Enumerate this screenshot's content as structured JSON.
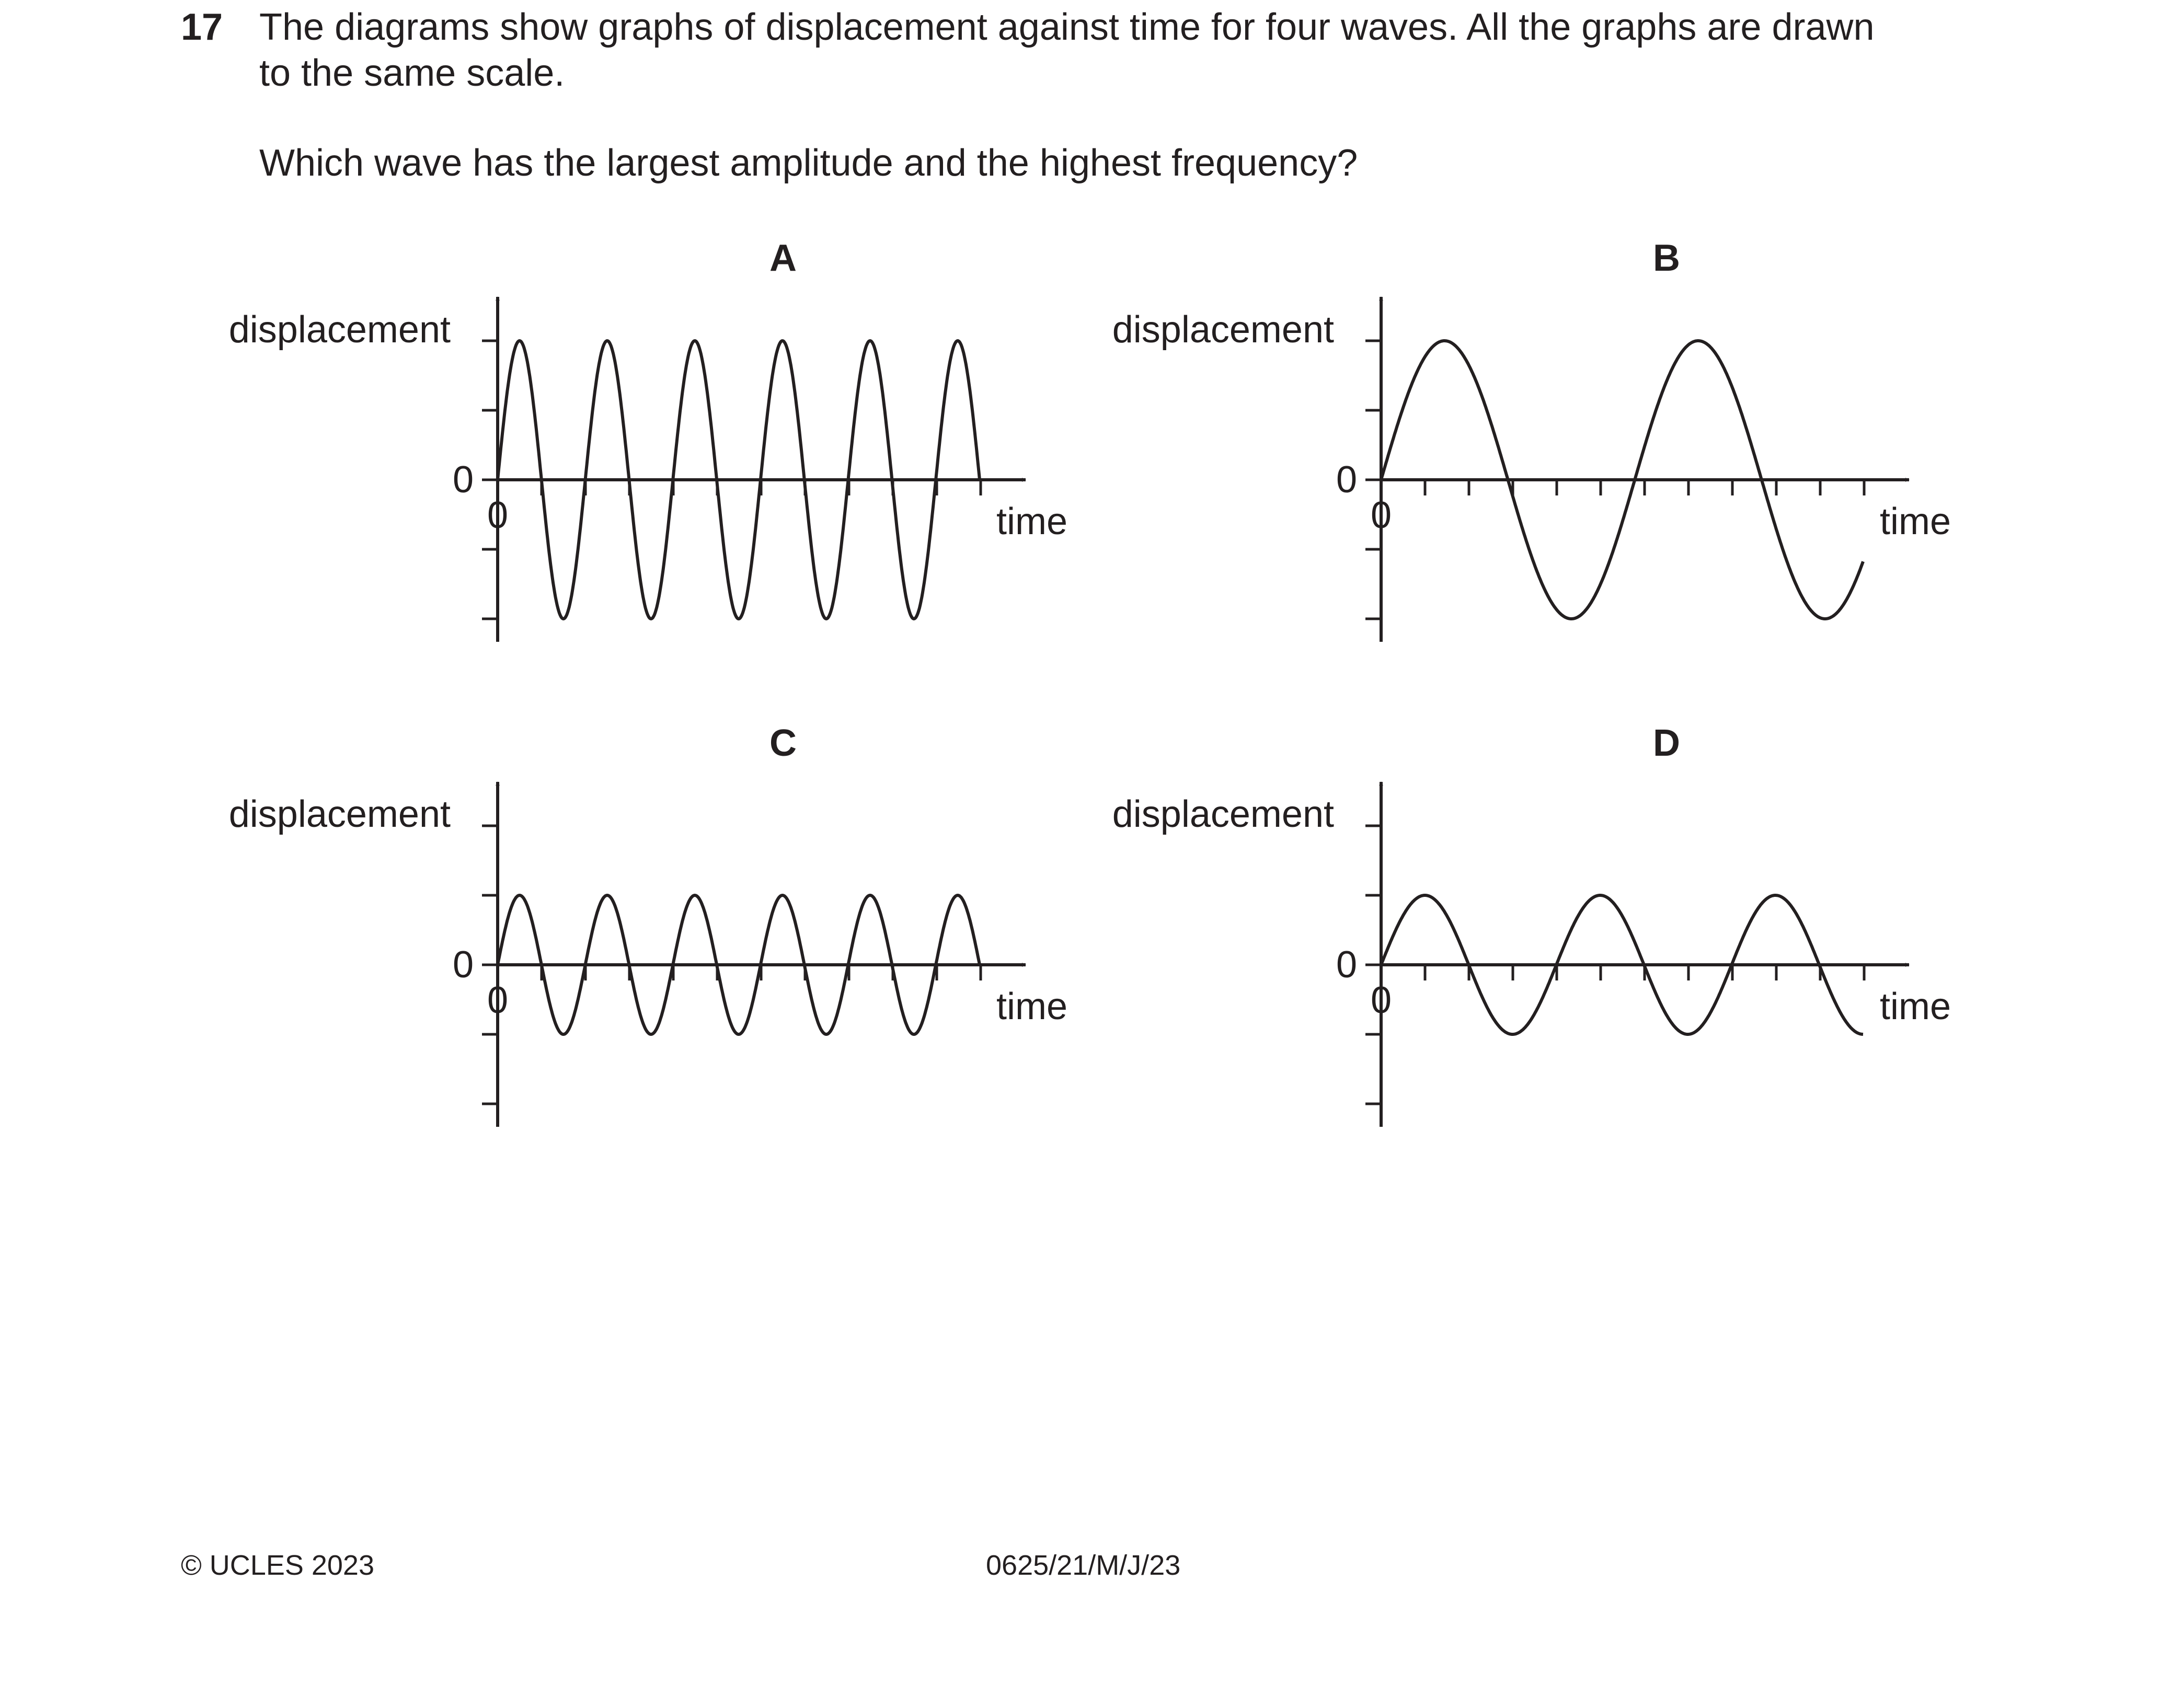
{
  "question": {
    "number": "17",
    "text_line1": "The diagrams show graphs of displacement against time for four waves. All the graphs are drawn",
    "text_line2": "to the same scale.",
    "prompt": "Which wave has the largest amplitude and the highest frequency?"
  },
  "graphs": [
    {
      "letter": "A",
      "ylabel": "displacement",
      "xlabel": "time",
      "origin_y": "0",
      "origin_x": "0",
      "amplitude": 2,
      "cycles": 5.5
    },
    {
      "letter": "B",
      "ylabel": "displacement",
      "xlabel": "time",
      "origin_y": "0",
      "origin_x": "0",
      "amplitude": 2,
      "cycles": 1.9
    },
    {
      "letter": "C",
      "ylabel": "displacement",
      "xlabel": "time",
      "origin_y": "0",
      "origin_x": "0",
      "amplitude": 1,
      "cycles": 5.5
    },
    {
      "letter": "D",
      "ylabel": "displacement",
      "xlabel": "time",
      "origin_y": "0",
      "origin_x": "0",
      "amplitude": 1,
      "cycles": 2.75
    }
  ],
  "footer": {
    "copyright": "© UCLES 2023",
    "code": "0625/21/M/J/23"
  }
}
